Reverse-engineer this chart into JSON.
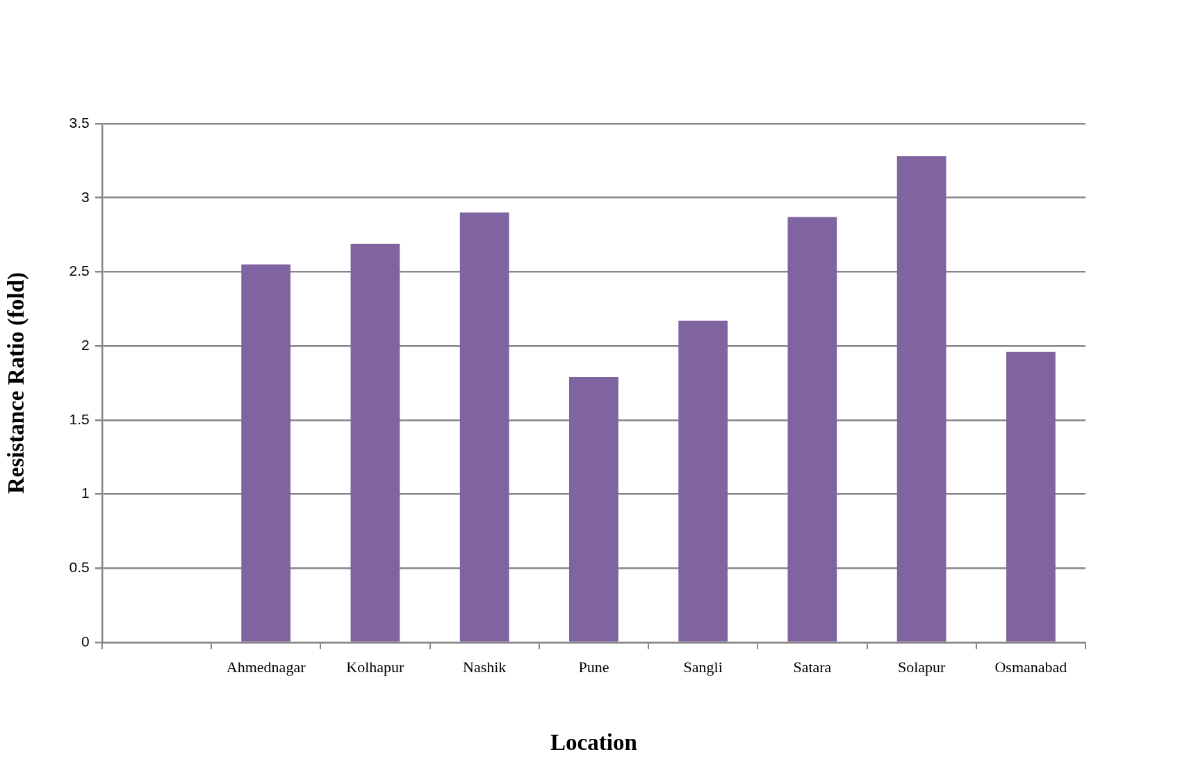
{
  "chart_data": {
    "type": "bar",
    "xlabel": "Location",
    "ylabel": "Resistance Ratio (fold)",
    "categories": [
      null,
      "Ahmednagar",
      "Kolhapur",
      "Nashik",
      "Pune",
      "Sangli",
      "Satara",
      "Solapur",
      "Osmanabad"
    ],
    "values": [
      null,
      2.55,
      2.69,
      2.9,
      1.79,
      2.17,
      2.87,
      3.28,
      1.96
    ],
    "color": "#8064a2",
    "ylim": [
      0,
      3.5
    ],
    "yticks": [
      0,
      0.5,
      1,
      1.5,
      2,
      2.5,
      3,
      3.5
    ],
    "grid": "y"
  }
}
